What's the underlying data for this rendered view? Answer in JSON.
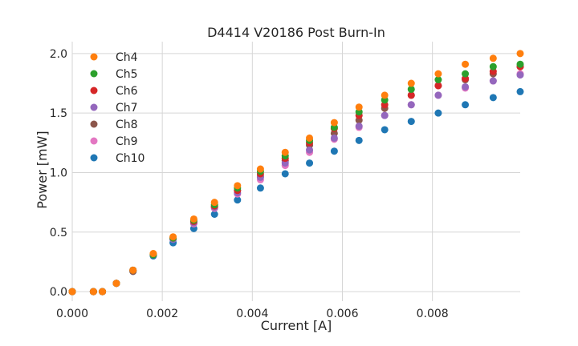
{
  "chart_data": {
    "type": "scatter",
    "title": "D4414 V20186 Post Burn-In",
    "xlabel": "Current [A]",
    "ylabel": "Power [mW]",
    "xlim": [
      0,
      0.00995
    ],
    "ylim": [
      -0.08,
      2.1
    ],
    "xticks": [
      0,
      0.002,
      0.004,
      0.006,
      0.008
    ],
    "xtick_labels": [
      "0.000",
      "0.002",
      "0.004",
      "0.006",
      "0.008"
    ],
    "yticks": [
      0,
      0.5,
      1.0,
      1.5,
      2.0
    ],
    "ytick_labels": [
      "0.0",
      "0.5",
      "1.0",
      "1.5",
      "2.0"
    ],
    "grid": true,
    "legend_position": "upper-left",
    "x": [
      0,
      0.00047,
      0.00067,
      0.00098,
      0.00135,
      0.0018,
      0.00224,
      0.0027,
      0.00316,
      0.00367,
      0.00418,
      0.00473,
      0.00527,
      0.00582,
      0.00637,
      0.00694,
      0.00753,
      0.00813,
      0.00873,
      0.00935,
      0.00995
    ],
    "series": [
      {
        "name": "Ch4",
        "color": "#ff7f0e",
        "values": [
          0,
          0,
          0,
          0.07,
          0.18,
          0.32,
          0.46,
          0.61,
          0.75,
          0.89,
          1.03,
          1.17,
          1.29,
          1.42,
          1.55,
          1.65,
          1.75,
          1.83,
          1.91,
          1.96,
          2.0
        ]
      },
      {
        "name": "Ch5",
        "color": "#2ca02c",
        "values": [
          0,
          0,
          0,
          0.07,
          0.18,
          0.31,
          0.45,
          0.6,
          0.73,
          0.87,
          1.01,
          1.14,
          1.27,
          1.38,
          1.51,
          1.61,
          1.7,
          1.78,
          1.83,
          1.89,
          1.91
        ]
      },
      {
        "name": "Ch6",
        "color": "#d62728",
        "values": [
          0,
          0,
          0,
          0.07,
          0.18,
          0.31,
          0.45,
          0.59,
          0.72,
          0.85,
          0.99,
          1.12,
          1.25,
          1.37,
          1.48,
          1.57,
          1.65,
          1.73,
          1.79,
          1.85,
          1.89
        ]
      },
      {
        "name": "Ch7",
        "color": "#9467bd",
        "values": [
          0,
          0,
          0,
          0.07,
          0.18,
          0.31,
          0.44,
          0.58,
          0.71,
          0.83,
          0.96,
          1.08,
          1.19,
          1.29,
          1.39,
          1.48,
          1.57,
          1.65,
          1.72,
          1.77,
          1.82
        ]
      },
      {
        "name": "Ch8",
        "color": "#8c564b",
        "values": [
          0,
          0,
          0,
          0.07,
          0.17,
          0.31,
          0.45,
          0.58,
          0.71,
          0.85,
          0.97,
          1.1,
          1.23,
          1.33,
          1.44,
          1.54,
          1.65,
          1.73,
          1.78,
          1.83,
          1.89
        ]
      },
      {
        "name": "Ch9",
        "color": "#e377c2",
        "values": [
          0,
          0,
          0,
          0.07,
          0.18,
          0.31,
          0.44,
          0.57,
          0.7,
          0.82,
          0.94,
          1.06,
          1.17,
          1.28,
          1.38,
          1.48,
          1.57,
          1.65,
          1.71,
          1.77,
          1.83
        ]
      },
      {
        "name": "Ch10",
        "color": "#1f77b4",
        "values": [
          0,
          0,
          0,
          0.07,
          0.17,
          0.3,
          0.41,
          0.53,
          0.65,
          0.77,
          0.87,
          0.99,
          1.08,
          1.18,
          1.27,
          1.36,
          1.43,
          1.5,
          1.57,
          1.63,
          1.68
        ]
      }
    ]
  }
}
